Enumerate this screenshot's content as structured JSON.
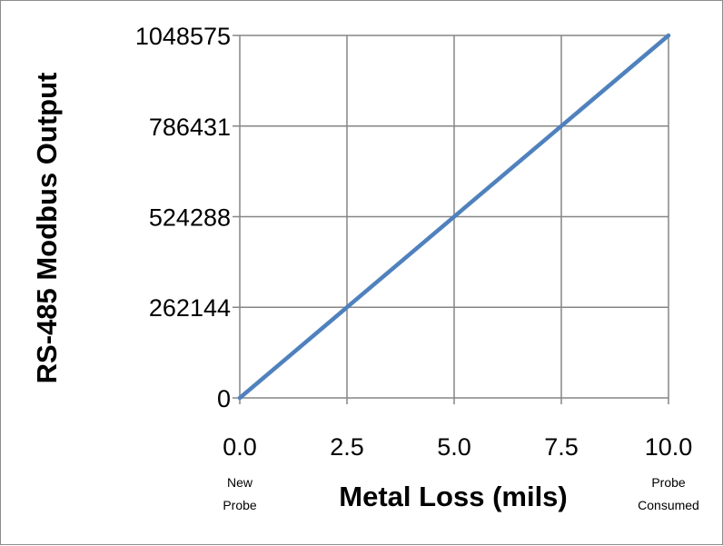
{
  "chart_data": {
    "type": "line",
    "title": "",
    "xlabel": "Metal Loss (mils)",
    "ylabel": "RS-485 Modbus Output",
    "x_ticks": [
      "0.0",
      "2.5",
      "5.0",
      "7.5",
      "10.0"
    ],
    "y_ticks": [
      "0",
      "262144",
      "524288",
      "786431",
      "1048575"
    ],
    "xlim": [
      0,
      10
    ],
    "ylim": [
      0,
      1048575
    ],
    "grid": true,
    "series": [
      {
        "color": "#4f81bd",
        "x": [
          0,
          10
        ],
        "y": [
          0,
          1048575
        ]
      }
    ],
    "annotations": {
      "left": [
        "New",
        "Probe"
      ],
      "right": [
        "Probe",
        "Consumed"
      ]
    }
  }
}
